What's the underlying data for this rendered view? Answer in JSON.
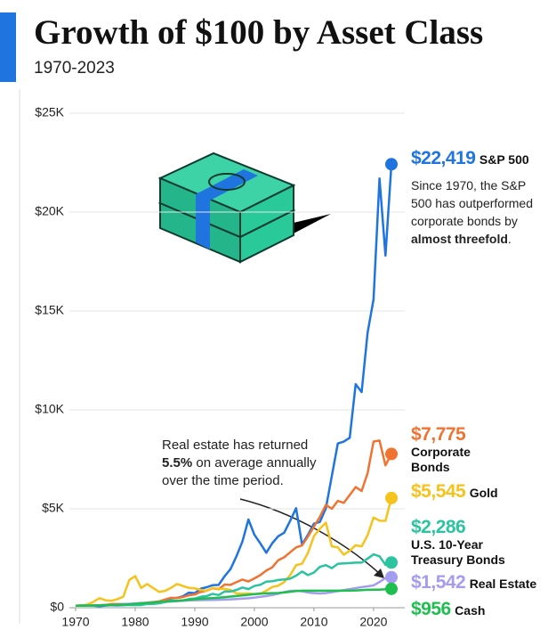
{
  "chart_data": {
    "type": "line",
    "title": "Growth of $100 by Asset Class",
    "subtitle": "1970-2023",
    "x": [
      1970,
      1971,
      1972,
      1973,
      1974,
      1975,
      1976,
      1977,
      1978,
      1979,
      1980,
      1981,
      1982,
      1983,
      1984,
      1985,
      1986,
      1987,
      1988,
      1989,
      1990,
      1991,
      1992,
      1993,
      1994,
      1995,
      1996,
      1997,
      1998,
      1999,
      2000,
      2001,
      2002,
      2003,
      2004,
      2005,
      2006,
      2007,
      2008,
      2009,
      2010,
      2011,
      2012,
      2013,
      2014,
      2015,
      2016,
      2017,
      2018,
      2019,
      2020,
      2021,
      2022,
      2023
    ],
    "xlim": [
      1970,
      2023
    ],
    "xticks": [
      1970,
      1980,
      1990,
      2000,
      2010,
      2020
    ],
    "ylim": [
      0,
      25000
    ],
    "yticks": [
      {
        "value": 0,
        "label": "$0"
      },
      {
        "value": 5000,
        "label": "$5K"
      },
      {
        "value": 10000,
        "label": "$10K"
      },
      {
        "value": 15000,
        "label": "$15K"
      },
      {
        "value": 20000,
        "label": "$20K"
      },
      {
        "value": 25000,
        "label": "$25K"
      }
    ],
    "grid": true,
    "series": [
      {
        "name": "S&P 500",
        "color": "#1f74e0",
        "values": [
          100,
          104,
          121,
          103,
          76,
          104,
          129,
          120,
          128,
          152,
          201,
          191,
          232,
          284,
          302,
          398,
          472,
          496,
          578,
          762,
          738,
          962,
          1036,
          1140,
          1155,
          1590,
          1956,
          2608,
          3354,
          4460,
          3690,
          3250,
          2780,
          3260,
          3610,
          3790,
          4390,
          5030,
          3200,
          3690,
          4250,
          4340,
          5030,
          6660,
          8300,
          8400,
          8590,
          11300,
          10900,
          13900,
          15590,
          21700,
          17800,
          22419
        ],
        "value_labels": [
          null,
          null,
          null,
          null,
          null,
          null,
          null,
          null,
          null,
          null,
          null,
          null,
          null,
          null,
          null,
          null,
          null,
          null,
          null,
          null,
          null,
          null,
          null,
          null,
          null,
          null,
          null,
          null,
          null,
          null,
          null,
          null,
          null,
          null,
          null,
          null,
          null,
          null,
          null,
          null,
          null,
          null,
          null,
          null,
          null,
          null,
          null,
          null,
          null,
          null,
          null,
          null,
          null,
          "$22,419"
        ]
      },
      {
        "name": "Corporate Bonds",
        "color": "#f07332",
        "values": [
          100,
          118,
          127,
          130,
          126,
          148,
          183,
          186,
          186,
          178,
          176,
          181,
          258,
          279,
          319,
          413,
          504,
          490,
          538,
          626,
          668,
          800,
          863,
          987,
          936,
          1170,
          1157,
          1296,
          1424,
          1327,
          1480,
          1650,
          1880,
          2040,
          2400,
          2550,
          2800,
          3050,
          3150,
          3600,
          4100,
          4600,
          5200,
          5000,
          5400,
          5300,
          5700,
          6100,
          5900,
          6800,
          8400,
          8450,
          7200,
          7775
        ],
        "value_labels": [
          null,
          null,
          null,
          null,
          null,
          null,
          null,
          null,
          null,
          null,
          null,
          null,
          null,
          null,
          null,
          null,
          null,
          null,
          null,
          null,
          null,
          null,
          null,
          null,
          null,
          null,
          null,
          null,
          null,
          null,
          null,
          null,
          null,
          null,
          null,
          null,
          null,
          null,
          null,
          null,
          null,
          null,
          null,
          null,
          null,
          null,
          null,
          null,
          null,
          null,
          null,
          null,
          null,
          "$7,775"
        ]
      },
      {
        "name": "Gold",
        "color": "#f6c21c",
        "values": [
          100,
          110,
          170,
          300,
          480,
          380,
          350,
          430,
          560,
          1400,
          1600,
          1000,
          1200,
          1000,
          800,
          850,
          1000,
          1200,
          1100,
          1000,
          980,
          900,
          850,
          1000,
          950,
          950,
          900,
          720,
          710,
          720,
          690,
          700,
          860,
          1050,
          1110,
          1300,
          1640,
          2150,
          2220,
          2780,
          3620,
          4000,
          4300,
          3100,
          3050,
          2680,
          2880,
          3160,
          3100,
          3660,
          4560,
          4400,
          4390,
          5545
        ],
        "value_labels": [
          null,
          null,
          null,
          null,
          null,
          null,
          null,
          null,
          null,
          null,
          null,
          null,
          null,
          null,
          null,
          null,
          null,
          null,
          null,
          null,
          null,
          null,
          null,
          null,
          null,
          null,
          null,
          null,
          null,
          null,
          null,
          null,
          null,
          null,
          null,
          null,
          null,
          null,
          null,
          null,
          null,
          null,
          null,
          null,
          null,
          null,
          null,
          null,
          null,
          null,
          null,
          null,
          null,
          "$5,545"
        ]
      },
      {
        "name": "U.S. 10-Year Treasury Bonds",
        "color": "#2cc3a0",
        "values": [
          100,
          110,
          113,
          117,
          119,
          124,
          138,
          138,
          138,
          136,
          132,
          137,
          188,
          192,
          221,
          287,
          353,
          346,
          370,
          437,
          465,
          556,
          590,
          700,
          640,
          819,
          820,
          900,
          1021,
          940,
          1100,
          1160,
          1320,
          1340,
          1400,
          1430,
          1470,
          1620,
          1830,
          1650,
          1780,
          2070,
          2150,
          2000,
          2220,
          2240,
          2260,
          2280,
          2280,
          2480,
          2700,
          2600,
          2170,
          2286
        ],
        "value_labels": [
          null,
          null,
          null,
          null,
          null,
          null,
          null,
          null,
          null,
          null,
          null,
          null,
          null,
          null,
          null,
          null,
          null,
          null,
          null,
          null,
          null,
          null,
          null,
          null,
          null,
          null,
          null,
          null,
          null,
          null,
          null,
          null,
          null,
          null,
          null,
          null,
          null,
          null,
          null,
          null,
          null,
          null,
          null,
          null,
          null,
          null,
          null,
          null,
          null,
          null,
          null,
          null,
          null,
          "$2,286"
        ]
      },
      {
        "name": "Real Estate",
        "color": "#a39cf0",
        "values": [
          100,
          104,
          109,
          115,
          123,
          134,
          145,
          160,
          180,
          200,
          220,
          240,
          250,
          265,
          275,
          290,
          310,
          330,
          350,
          370,
          380,
          385,
          390,
          395,
          400,
          410,
          420,
          440,
          460,
          480,
          510,
          550,
          590,
          640,
          710,
          790,
          850,
          860,
          830,
          770,
          740,
          720,
          740,
          790,
          840,
          890,
          940,
          990,
          1040,
          1080,
          1130,
          1300,
          1500,
          1542
        ],
        "value_labels": [
          null,
          null,
          null,
          null,
          null,
          null,
          null,
          null,
          null,
          null,
          null,
          null,
          null,
          null,
          null,
          null,
          null,
          null,
          null,
          null,
          null,
          null,
          null,
          null,
          null,
          null,
          null,
          null,
          null,
          null,
          null,
          null,
          null,
          null,
          null,
          null,
          null,
          null,
          null,
          null,
          null,
          null,
          null,
          null,
          null,
          null,
          null,
          null,
          null,
          null,
          null,
          null,
          null,
          "$1,542"
        ]
      },
      {
        "name": "Cash",
        "color": "#1fbf4f",
        "values": [
          100,
          104,
          108,
          115,
          124,
          131,
          138,
          145,
          155,
          171,
          190,
          219,
          242,
          263,
          289,
          311,
          330,
          348,
          370,
          401,
          432,
          457,
          473,
          487,
          507,
          536,
          564,
          593,
          622,
          651,
          689,
          716,
          728,
          736,
          746,
          769,
          805,
          842,
          859,
          860,
          861,
          862,
          863,
          863,
          863,
          864,
          866,
          873,
          889,
          909,
          914,
          914,
          932,
          956
        ],
        "value_labels": [
          null,
          null,
          null,
          null,
          null,
          null,
          null,
          null,
          null,
          null,
          null,
          null,
          null,
          null,
          null,
          null,
          null,
          null,
          null,
          null,
          null,
          null,
          null,
          null,
          null,
          null,
          null,
          null,
          null,
          null,
          null,
          null,
          null,
          null,
          null,
          null,
          null,
          null,
          null,
          null,
          null,
          null,
          null,
          null,
          null,
          null,
          null,
          null,
          null,
          null,
          null,
          null,
          null,
          "$956"
        ]
      }
    ],
    "annotations": [
      {
        "parts": [
          "Since 1970, the S&P 500 has outperformed corporate bonds by ",
          "almost threefold",
          "."
        ]
      },
      {
        "parts": [
          "Real estate has returned ",
          "5.5%",
          " on average annually over the time period."
        ]
      }
    ]
  }
}
